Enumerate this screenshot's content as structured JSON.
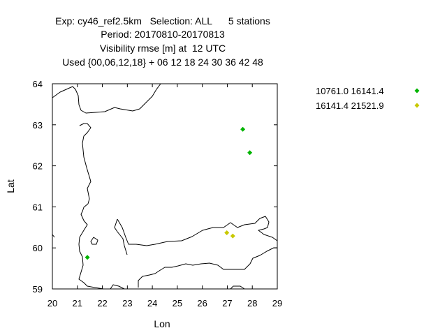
{
  "title_lines": [
    "Exp: cy46_ref2.5km   Selection: ALL      5 stations",
    "Period: 20170810-20170813",
    "Visibility rmse [m] at  12 UTC",
    "Used {00,06,12,18} + 06 12 18 24 30 36 42 48"
  ],
  "chart_data": {
    "type": "scatter",
    "title": "Exp: cy46_ref2.5km   Selection: ALL      5 stations",
    "xlabel": "Lon",
    "ylabel": "Lat",
    "xlim": [
      20,
      29
    ],
    "ylim": [
      59,
      64
    ],
    "xticks": [
      "20",
      "21",
      "22",
      "23",
      "24",
      "25",
      "26",
      "27",
      "28",
      "29"
    ],
    "yticks": [
      "59",
      "60",
      "61",
      "62",
      "63",
      "64"
    ],
    "grid": false,
    "legend_position": "right",
    "series": [
      {
        "name": "10761.0 16141.4",
        "color": "#00b400",
        "points": [
          [
            21.4,
            59.77
          ],
          [
            27.62,
            62.89
          ],
          [
            27.9,
            62.32
          ]
        ]
      },
      {
        "name": "16141.4 21521.9",
        "color": "#c8c800",
        "points": [
          [
            26.98,
            60.37
          ],
          [
            27.22,
            60.29
          ]
        ]
      }
    ]
  }
}
